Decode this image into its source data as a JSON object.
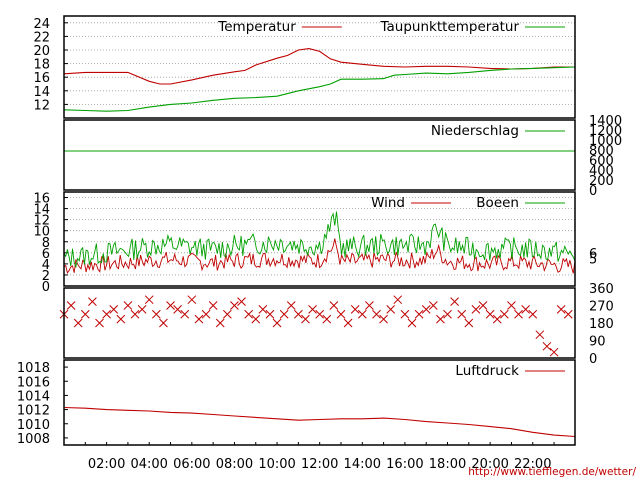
{
  "footer": {
    "url": "http://www.tiefflegen.de/wetter/"
  },
  "chart_data": [
    {
      "type": "line",
      "panel": "temperature",
      "ylim": [
        10,
        25
      ],
      "y_ticks": [
        "12",
        "14",
        "16",
        "18",
        "20",
        "22",
        "24"
      ],
      "grid": true,
      "legend": "top-right",
      "series": [
        {
          "name": "Temperatur",
          "color": "#c00000",
          "x": [
            "00:00",
            "01:00",
            "02:00",
            "03:00",
            "04:00",
            "04:30",
            "05:00",
            "06:00",
            "07:00",
            "08:00",
            "08:30",
            "09:00",
            "10:00",
            "10:30",
            "11:00",
            "11:30",
            "12:00",
            "12:30",
            "13:00",
            "14:00",
            "15:00",
            "16:00",
            "17:00",
            "18:00",
            "19:00",
            "20:00",
            "21:00",
            "22:00",
            "23:00",
            "23:59"
          ],
          "y": [
            16.5,
            16.7,
            16.7,
            16.7,
            15.4,
            15.0,
            15.0,
            15.6,
            16.3,
            16.8,
            17.0,
            17.8,
            18.8,
            19.2,
            20.0,
            20.2,
            19.8,
            18.7,
            18.2,
            17.9,
            17.6,
            17.5,
            17.6,
            17.6,
            17.5,
            17.3,
            17.2,
            17.3,
            17.5,
            17.5
          ]
        },
        {
          "name": "Taupunkttemperatur",
          "color": "#00a000",
          "x": [
            "00:00",
            "01:00",
            "02:00",
            "03:00",
            "04:00",
            "05:00",
            "06:00",
            "07:00",
            "08:00",
            "09:00",
            "10:00",
            "11:00",
            "12:00",
            "12:30",
            "13:00",
            "14:00",
            "15:00",
            "15:30",
            "16:00",
            "17:00",
            "18:00",
            "19:00",
            "20:00",
            "21:00",
            "22:00",
            "23:00",
            "23:59"
          ],
          "y": [
            11.2,
            11.1,
            11.0,
            11.1,
            11.6,
            12.0,
            12.2,
            12.6,
            12.9,
            13.0,
            13.2,
            14.0,
            14.6,
            15.0,
            15.7,
            15.7,
            15.8,
            16.3,
            16.4,
            16.6,
            16.5,
            16.7,
            17.0,
            17.2,
            17.3,
            17.4,
            17.5
          ]
        }
      ]
    },
    {
      "type": "line",
      "panel": "precipitation",
      "ylim": [
        0,
        1400
      ],
      "y_ticks_right": [
        "0",
        "200",
        "400",
        "600",
        "800",
        "1000",
        "1200",
        "1400"
      ],
      "legend": "top-right",
      "series": [
        {
          "name": "Niederschlag",
          "color": "#00a000",
          "x": [
            "00:00",
            "23:59"
          ],
          "y": [
            780,
            780
          ]
        }
      ]
    },
    {
      "type": "line",
      "panel": "wind",
      "ylim": [
        0,
        16
      ],
      "y_ticks": [
        "0",
        "2",
        "4",
        "6",
        "8",
        "10",
        "12",
        "14",
        "16"
      ],
      "y_ticks_right": [
        "5",
        "6"
      ],
      "grid": true,
      "legend": "top-right",
      "series": [
        {
          "name": "Wind",
          "color": "#c00000",
          "x": [
            "00:00",
            "01:00",
            "02:00",
            "03:00",
            "04:00",
            "05:00",
            "06:00",
            "07:00",
            "08:00",
            "09:00",
            "10:00",
            "11:00",
            "12:00",
            "12:45",
            "13:00",
            "14:00",
            "15:00",
            "16:00",
            "17:00",
            "17:30",
            "18:00",
            "19:00",
            "20:00",
            "21:00",
            "22:00",
            "23:00",
            "23:59"
          ],
          "y": [
            3.5,
            3.8,
            4.0,
            4.2,
            4.6,
            4.8,
            4.5,
            4.2,
            4.6,
            4.8,
            5.0,
            4.7,
            4.6,
            7.5,
            4.4,
            4.5,
            4.8,
            4.6,
            4.7,
            6.5,
            4.5,
            4.2,
            4.0,
            4.3,
            4.1,
            3.8,
            3.5
          ]
        },
        {
          "name": "Boeen",
          "color": "#00a000",
          "x": [
            "00:00",
            "01:00",
            "02:00",
            "03:00",
            "04:00",
            "05:00",
            "06:00",
            "07:00",
            "08:00",
            "09:00",
            "10:00",
            "11:00",
            "12:00",
            "12:45",
            "13:00",
            "14:00",
            "15:00",
            "16:00",
            "17:00",
            "17:30",
            "18:00",
            "19:00",
            "20:00",
            "21:00",
            "22:00",
            "23:00",
            "23:59"
          ],
          "y": [
            5.0,
            5.5,
            6.0,
            6.5,
            7.2,
            7.5,
            7.0,
            6.6,
            7.3,
            7.6,
            8.0,
            7.5,
            7.2,
            12.5,
            7.0,
            7.2,
            7.5,
            7.3,
            7.5,
            10.5,
            7.2,
            6.8,
            6.5,
            6.8,
            6.6,
            6.2,
            5.6
          ]
        }
      ]
    },
    {
      "type": "scatter",
      "panel": "wind-direction",
      "ylim": [
        0,
        360
      ],
      "y_ticks_right": [
        "0",
        "90",
        "180",
        "270",
        "360"
      ],
      "marker": "x",
      "color": "#c00000",
      "x": [
        "00:00",
        "00:20",
        "00:40",
        "01:00",
        "01:20",
        "01:40",
        "02:00",
        "02:20",
        "02:40",
        "03:00",
        "03:20",
        "03:40",
        "04:00",
        "04:20",
        "04:40",
        "05:00",
        "05:20",
        "05:40",
        "06:00",
        "06:20",
        "06:40",
        "07:00",
        "07:20",
        "07:40",
        "08:00",
        "08:20",
        "08:40",
        "09:00",
        "09:20",
        "09:40",
        "10:00",
        "10:20",
        "10:40",
        "11:00",
        "11:20",
        "11:40",
        "12:00",
        "12:20",
        "12:40",
        "13:00",
        "13:20",
        "13:40",
        "14:00",
        "14:20",
        "14:40",
        "15:00",
        "15:20",
        "15:40",
        "16:00",
        "16:20",
        "16:40",
        "17:00",
        "17:20",
        "17:40",
        "18:00",
        "18:20",
        "18:40",
        "19:00",
        "19:20",
        "19:40",
        "20:00",
        "20:20",
        "20:40",
        "21:00",
        "21:20",
        "21:40",
        "22:00",
        "22:20",
        "22:40",
        "23:00",
        "23:20",
        "23:40"
      ],
      "y": [
        225,
        270,
        180,
        225,
        290,
        180,
        225,
        250,
        200,
        270,
        225,
        250,
        300,
        225,
        180,
        270,
        250,
        225,
        300,
        200,
        225,
        270,
        180,
        225,
        270,
        290,
        225,
        200,
        250,
        225,
        180,
        225,
        270,
        225,
        200,
        250,
        225,
        200,
        270,
        225,
        180,
        250,
        225,
        270,
        225,
        200,
        250,
        300,
        225,
        180,
        225,
        250,
        270,
        200,
        225,
        290,
        225,
        180,
        250,
        270,
        225,
        200,
        225,
        270,
        225,
        250,
        225,
        120,
        60,
        30,
        250,
        225
      ]
    },
    {
      "type": "line",
      "panel": "pressure",
      "ylim": [
        1007,
        1019
      ],
      "y_ticks": [
        "1008",
        "1010",
        "1012",
        "1014",
        "1016",
        "1018"
      ],
      "legend": "top-right",
      "series": [
        {
          "name": "Luftdruck",
          "color": "#c00000",
          "x": [
            "00:00",
            "01:00",
            "02:00",
            "03:00",
            "04:00",
            "05:00",
            "06:00",
            "07:00",
            "08:00",
            "09:00",
            "10:00",
            "11:00",
            "12:00",
            "13:00",
            "14:00",
            "15:00",
            "16:00",
            "17:00",
            "18:00",
            "19:00",
            "20:00",
            "21:00",
            "22:00",
            "23:00",
            "23:59"
          ],
          "y": [
            1012.3,
            1012.2,
            1012.0,
            1011.9,
            1011.8,
            1011.6,
            1011.5,
            1011.3,
            1011.1,
            1010.9,
            1010.7,
            1010.5,
            1010.6,
            1010.7,
            1010.7,
            1010.8,
            1010.6,
            1010.3,
            1010.1,
            1009.9,
            1009.6,
            1009.3,
            1008.8,
            1008.4,
            1008.2
          ]
        }
      ]
    }
  ],
  "x_axis": {
    "tick_labels": [
      "02:00",
      "04:00",
      "06:00",
      "08:00",
      "10:00",
      "12:00",
      "14:00",
      "16:00",
      "18:00",
      "20:00",
      "22:00"
    ]
  }
}
